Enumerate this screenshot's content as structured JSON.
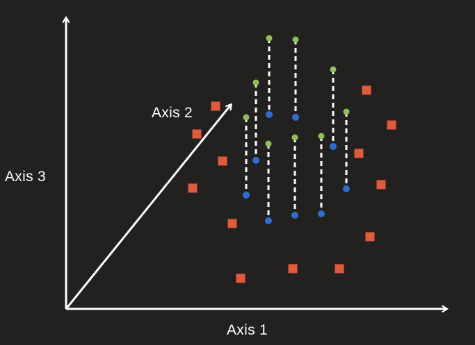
{
  "axes": {
    "axis1_label": "Axis 1",
    "axis2_label": "Axis 2",
    "axis3_label": "Axis 3"
  },
  "colors": {
    "background": "#222120",
    "axis": "#ffffff",
    "red_marker": "#e05a3e",
    "top_point": "#8fbf5a",
    "bottom_point": "#2f6fd1",
    "connector": "#ffffff"
  },
  "legend": {
    "marker_kinds": [
      "red-square",
      "green-top-point",
      "blue-bottom-point",
      "dashed-connector"
    ]
  }
}
